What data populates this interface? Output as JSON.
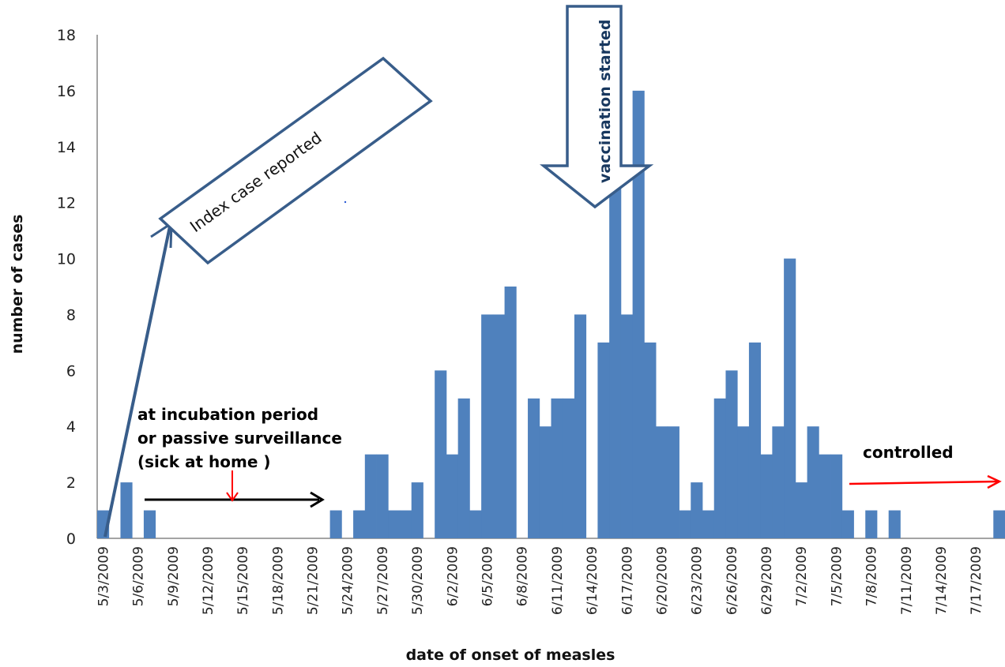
{
  "chart_data": {
    "type": "bar",
    "xlabel": "date of onset of measles",
    "ylabel": "number of cases",
    "ylim": [
      0,
      18
    ],
    "yticks": [
      0,
      2,
      4,
      6,
      8,
      10,
      12,
      14,
      16,
      18
    ],
    "grid": false,
    "bar_color": "#4f81bd",
    "tick_labels": [
      "5/3/2009",
      "5/6/2009",
      "5/9/2009",
      "5/12/2009",
      "5/15/2009",
      "5/18/2009",
      "5/21/2009",
      "5/24/2009",
      "5/27/2009",
      "5/30/2009",
      "6/2/2009",
      "6/5/2009",
      "6/8/2009",
      "6/11/2009",
      "6/14/2009",
      "6/17/2009",
      "6/20/2009",
      "6/23/2009",
      "6/26/2009",
      "6/29/2009",
      "7/2/2009",
      "7/5/2009",
      "7/8/2009",
      "7/11/2009",
      "7/14/2009",
      "7/17/2009"
    ],
    "categories": [
      "5/3/2009",
      "5/4/2009",
      "5/5/2009",
      "5/6/2009",
      "5/7/2009",
      "5/8/2009",
      "5/9/2009",
      "5/10/2009",
      "5/11/2009",
      "5/12/2009",
      "5/13/2009",
      "5/14/2009",
      "5/15/2009",
      "5/16/2009",
      "5/17/2009",
      "5/18/2009",
      "5/19/2009",
      "5/20/2009",
      "5/21/2009",
      "5/22/2009",
      "5/23/2009",
      "5/24/2009",
      "5/25/2009",
      "5/26/2009",
      "5/27/2009",
      "5/28/2009",
      "5/29/2009",
      "5/30/2009",
      "5/31/2009",
      "6/1/2009",
      "6/2/2009",
      "6/3/2009",
      "6/4/2009",
      "6/5/2009",
      "6/6/2009",
      "6/7/2009",
      "6/8/2009",
      "6/9/2009",
      "6/10/2009",
      "6/11/2009",
      "6/12/2009",
      "6/13/2009",
      "6/14/2009",
      "6/15/2009",
      "6/16/2009",
      "6/17/2009",
      "6/18/2009",
      "6/19/2009",
      "6/20/2009",
      "6/21/2009",
      "6/22/2009",
      "6/23/2009",
      "6/24/2009",
      "6/25/2009",
      "6/26/2009",
      "6/27/2009",
      "6/28/2009",
      "6/29/2009",
      "6/30/2009",
      "7/1/2009",
      "7/2/2009",
      "7/3/2009",
      "7/4/2009",
      "7/5/2009",
      "7/6/2009",
      "7/7/2009",
      "7/8/2009",
      "7/9/2009",
      "7/10/2009",
      "7/11/2009",
      "7/12/2009",
      "7/13/2009",
      "7/14/2009",
      "7/15/2009",
      "7/16/2009",
      "7/17/2009",
      "7/18/2009",
      "7/19/2009"
    ],
    "values": [
      1,
      0,
      2,
      0,
      1,
      0,
      0,
      0,
      0,
      0,
      0,
      0,
      0,
      0,
      0,
      0,
      0,
      0,
      0,
      0,
      1,
      0,
      1,
      3,
      3,
      1,
      1,
      2,
      0,
      6,
      3,
      5,
      1,
      8,
      8,
      9,
      0,
      5,
      4,
      5,
      5,
      8,
      0,
      7,
      13,
      8,
      16,
      7,
      4,
      4,
      1,
      2,
      1,
      5,
      6,
      4,
      7,
      3,
      4,
      10,
      2,
      4,
      3,
      3,
      1,
      0,
      1,
      0,
      1,
      0,
      0,
      0,
      0,
      0,
      0,
      0,
      0,
      1
    ],
    "annotations": {
      "index_case": "Index case reported",
      "vaccination": "vaccination started",
      "incubation_line1": "at incubation period",
      "incubation_line2": "or passive surveillance",
      "incubation_line3": "(sick at home )",
      "controlled": "controlled"
    },
    "annotation_colors": {
      "box_border": "#385d8a",
      "black_arrow": "#000000",
      "red_arrow": "#ff0000"
    }
  }
}
